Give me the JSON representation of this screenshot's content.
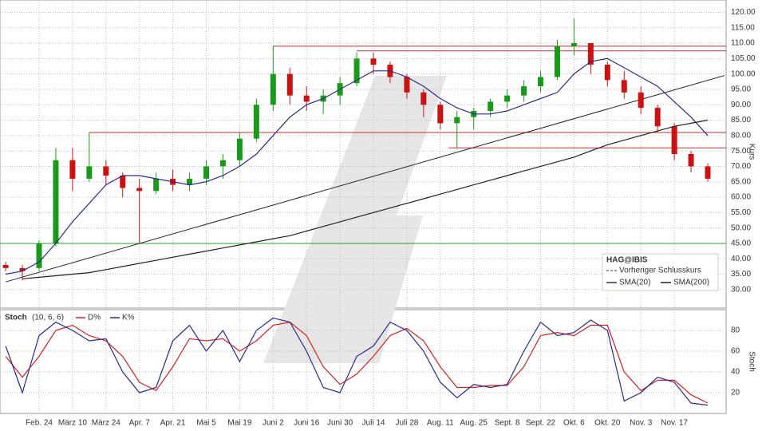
{
  "chart_data": [
    {
      "type": "candlestick",
      "legend": {
        "title": "HAG@IBIS",
        "items": [
          "Vorheriger Schlusskurs"
        ]
      },
      "y_label": "Kurs",
      "categories": [
        null,
        null,
        "Feb. 24",
        null,
        "März 10",
        null,
        "März 24",
        null,
        "Apr. 7",
        null,
        "Apr. 21",
        null,
        "Mai 5",
        null,
        "Mai 19",
        null,
        "Juni 2",
        null,
        "Juni 16",
        null,
        "Juni 30",
        null,
        "Juli 14",
        null,
        "Juli 28",
        null,
        "Aug. 11",
        null,
        "Aug. 25",
        null,
        "Sept. 8",
        null,
        "Sept. 22",
        null,
        "Okt. 6",
        null,
        "Okt. 20",
        null,
        "Nov. 3",
        null,
        "Nov. 17",
        null,
        null
      ],
      "open": [
        38,
        37,
        37,
        45,
        72,
        66,
        70,
        67,
        63,
        62,
        66,
        64,
        66,
        70,
        72,
        79,
        90,
        100,
        93,
        91,
        93,
        97,
        105,
        103,
        99,
        94,
        90,
        84,
        86,
        88,
        91,
        93,
        96,
        99,
        109,
        110,
        103,
        98,
        94,
        89,
        83,
        74,
        70
      ],
      "high": [
        39,
        38,
        46,
        76,
        76,
        81,
        72,
        68,
        66,
        68,
        69,
        68,
        72,
        74,
        81,
        92,
        109,
        102,
        96,
        95,
        99,
        107,
        107,
        104,
        100,
        95,
        91,
        88,
        89,
        92,
        95,
        98,
        101,
        111,
        118,
        110,
        104,
        101,
        96,
        90,
        84,
        75,
        71
      ],
      "low": [
        36,
        33,
        36,
        44,
        62,
        65,
        64,
        60,
        45,
        61,
        62,
        62,
        64,
        66,
        70,
        78,
        88,
        90,
        88,
        87,
        90,
        96,
        100,
        97,
        92,
        86,
        82,
        76,
        82,
        86,
        89,
        91,
        94,
        98,
        106,
        100,
        96,
        92,
        87,
        81,
        72,
        68,
        65
      ],
      "close": [
        37,
        36,
        45,
        72,
        66,
        70,
        67,
        63,
        62,
        66,
        64,
        66,
        70,
        72,
        79,
        90,
        100,
        93,
        91,
        93,
        97,
        105,
        103,
        99,
        94,
        90,
        84,
        86,
        88,
        91,
        93,
        96,
        99,
        109,
        110,
        103,
        98,
        94,
        89,
        83,
        74,
        70,
        66
      ],
      "up_color": "#1a9a1a",
      "down_color": "#cc1111",
      "series": [
        {
          "name": "SMA(20)",
          "color": "#2a2a8a",
          "values": [
            35,
            36,
            39,
            45,
            52,
            58,
            64,
            67,
            67,
            66,
            65,
            64,
            65,
            67,
            70,
            74,
            80,
            86,
            90,
            92,
            95,
            98,
            101,
            101,
            99,
            96,
            92,
            89,
            87,
            87,
            88,
            90,
            92,
            94,
            100,
            104,
            105,
            102,
            99,
            96,
            91,
            86,
            80
          ]
        },
        {
          "name": "SMA(200)",
          "color": "#222222",
          "values": [
            null,
            33.5,
            34,
            34.5,
            35,
            35.5,
            36.5,
            37.5,
            38.5,
            39.5,
            40.5,
            41.5,
            42.5,
            43.5,
            44.5,
            45.5,
            46.5,
            47.5,
            49,
            50.5,
            52,
            53.5,
            55,
            56.5,
            58,
            59.5,
            61,
            62.5,
            64,
            65.5,
            67,
            68.5,
            70,
            71.5,
            73,
            75,
            77,
            78.5,
            80,
            81.5,
            83,
            84,
            85
          ]
        }
      ],
      "hlines": [
        {
          "value": 109,
          "from": 16,
          "color": "#d42a2a"
        },
        {
          "value": 107.5,
          "from": 21,
          "color": "#d42a2a"
        },
        {
          "value": 81,
          "from": 5,
          "color": "#d42a2a"
        },
        {
          "value": 76,
          "from": 26.5,
          "color": "#d42a2a"
        },
        {
          "value": 45,
          "from": -1,
          "color": "#2aa02a"
        }
      ],
      "trendlines": [
        {
          "from": [
            0,
            32.5
          ],
          "to": [
            43,
            99.5
          ],
          "color": "#222222"
        }
      ],
      "ylim": [
        24,
        124
      ],
      "yticks": [
        {
          "value": 30,
          "label": "30.00"
        },
        {
          "value": 35,
          "label": "35.00"
        },
        {
          "value": 40,
          "label": "40.00"
        },
        {
          "value": 45,
          "label": "45.00"
        },
        {
          "value": 50,
          "label": "50.00"
        },
        {
          "value": 55,
          "label": "55.00"
        },
        {
          "value": 60,
          "label": "60.00"
        },
        {
          "value": 65,
          "label": "65.00"
        },
        {
          "value": 70,
          "label": "70.00"
        },
        {
          "value": 75,
          "label": "75.00"
        },
        {
          "value": 80,
          "label": "80.00"
        },
        {
          "value": 85,
          "label": "85.00"
        },
        {
          "value": 90,
          "label": "90.00"
        },
        {
          "value": 95,
          "label": "95.00"
        },
        {
          "value": 100,
          "label": "100.00"
        },
        {
          "value": 105,
          "label": "105.00"
        },
        {
          "value": 110,
          "label": "110.00"
        },
        {
          "value": 115,
          "label": "115.00"
        },
        {
          "value": 120,
          "label": "120.00"
        }
      ],
      "grid": true
    },
    {
      "type": "line",
      "title": "Stoch",
      "params": "(10, 6, 6)",
      "y_label": "Stoch",
      "series": [
        {
          "name": "D%",
          "color": "#d62020",
          "values": [
            55,
            35,
            55,
            80,
            85,
            75,
            70,
            55,
            30,
            22,
            45,
            72,
            70,
            72,
            60,
            70,
            85,
            88,
            75,
            45,
            28,
            38,
            55,
            75,
            82,
            70,
            45,
            25,
            25,
            27,
            27,
            45,
            75,
            78,
            75,
            85,
            85,
            40,
            22,
            32,
            32,
            18,
            10
          ]
        },
        {
          "name": "K%",
          "color": "#2a2a8a",
          "values": [
            65,
            20,
            75,
            88,
            80,
            70,
            72,
            40,
            20,
            25,
            70,
            85,
            60,
            80,
            50,
            80,
            92,
            88,
            60,
            25,
            20,
            55,
            65,
            88,
            80,
            60,
            30,
            15,
            28,
            25,
            28,
            60,
            88,
            75,
            78,
            90,
            80,
            12,
            20,
            35,
            30,
            10,
            8
          ]
        }
      ],
      "ylim": [
        0,
        100
      ],
      "yticks": [
        20,
        40,
        60,
        80
      ],
      "grid": true
    }
  ]
}
